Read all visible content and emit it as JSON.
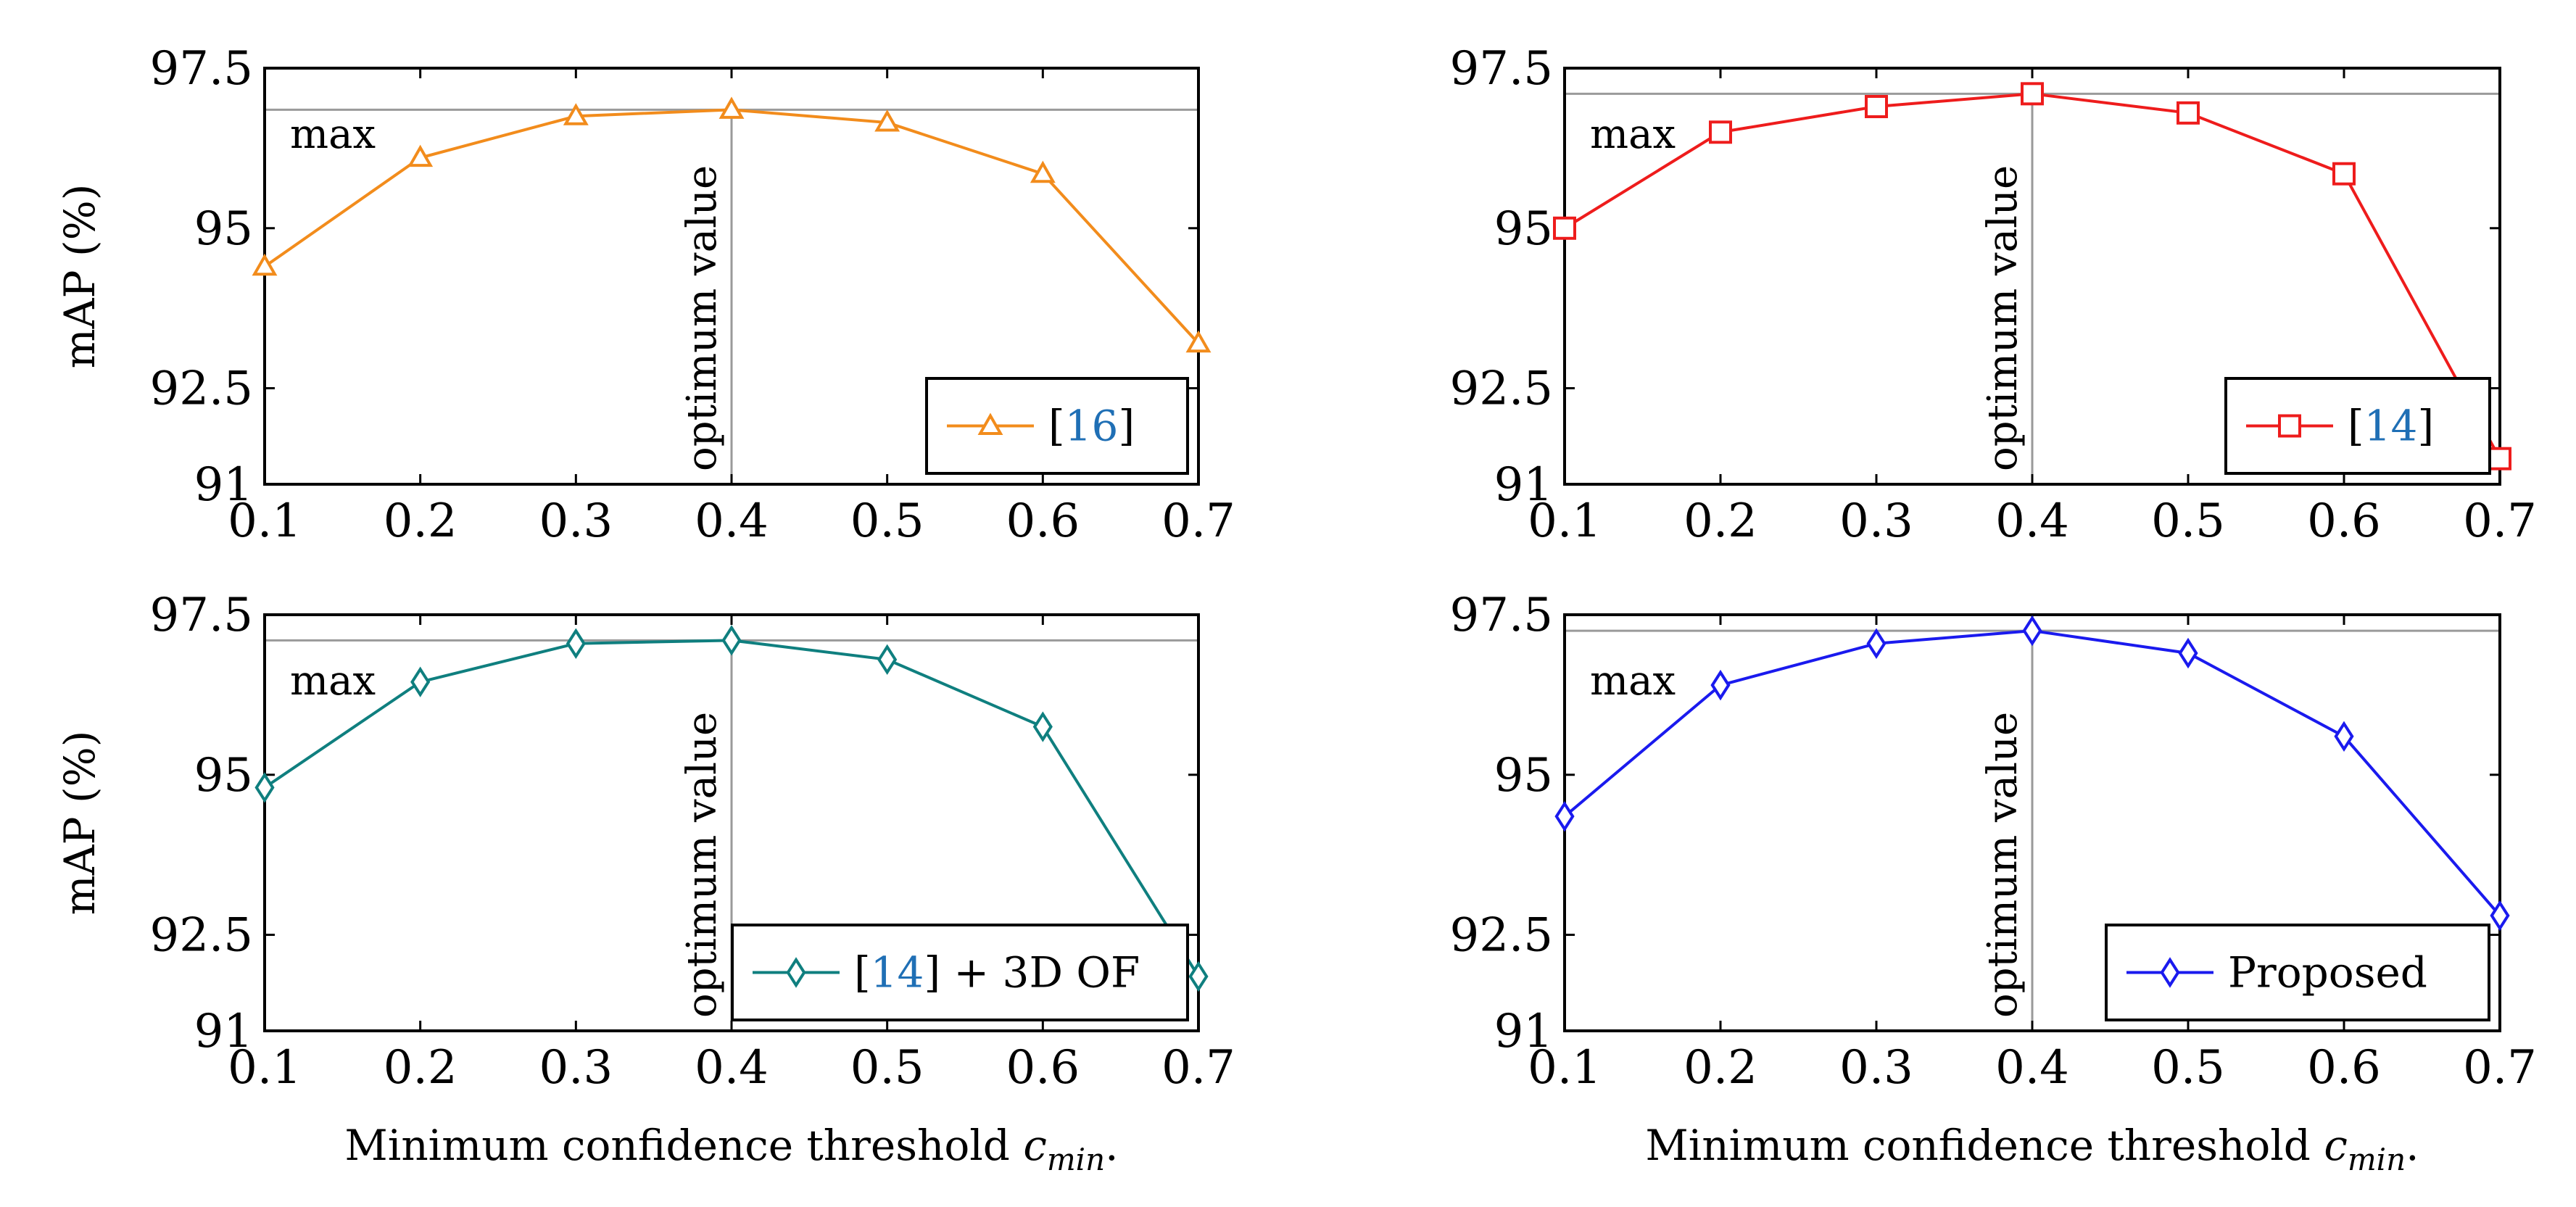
{
  "chart_data": [
    {
      "type": "line",
      "panel": "top-left",
      "title": "",
      "xlabel": "",
      "ylabel": "mAP (%)",
      "xlim": [
        0.1,
        0.7
      ],
      "ylim": [
        91,
        97.5
      ],
      "xticks": [
        "0.1",
        "0.2",
        "0.3",
        "0.4",
        "0.5",
        "0.6",
        "0.7"
      ],
      "yticks": [
        "91",
        "92.5",
        "95",
        "97.5"
      ],
      "series": [
        {
          "name": "[16]",
          "legend_prefix": "[",
          "legend_cite": "16",
          "legend_suffix": "]",
          "marker": "triangle",
          "color": "#f28c1c",
          "x": [
            0.1,
            0.2,
            0.3,
            0.4,
            0.5,
            0.6,
            0.7
          ],
          "y": [
            94.4,
            96.1,
            96.75,
            96.85,
            96.65,
            95.85,
            93.2
          ]
        }
      ],
      "max_line": 96.85,
      "max_label": "max",
      "optimum_x": 0.4,
      "optimum_label": "optimum value",
      "legend_position": "bottom-right"
    },
    {
      "type": "line",
      "panel": "top-right",
      "title": "",
      "xlabel": "",
      "ylabel": "",
      "xlim": [
        0.1,
        0.7
      ],
      "ylim": [
        91,
        97.5
      ],
      "xticks": [
        "0.1",
        "0.2",
        "0.3",
        "0.4",
        "0.5",
        "0.6",
        "0.7"
      ],
      "yticks": [
        "91",
        "92.5",
        "95",
        "97.5"
      ],
      "series": [
        {
          "name": "[14]",
          "legend_prefix": "[",
          "legend_cite": "14",
          "legend_suffix": "]",
          "marker": "square",
          "color": "#ee1c1c",
          "x": [
            0.1,
            0.2,
            0.3,
            0.4,
            0.5,
            0.6,
            0.7
          ],
          "y": [
            95.0,
            96.5,
            96.9,
            97.1,
            96.8,
            95.85,
            91.4
          ]
        }
      ],
      "max_line": 97.1,
      "max_label": "max",
      "optimum_x": 0.4,
      "optimum_label": "optimum value",
      "legend_position": "bottom-right"
    },
    {
      "type": "line",
      "panel": "bottom-left",
      "title": "",
      "xlabel": "Minimum confidence threshold c_min.",
      "xlabel_main": "Minimum confidence threshold ",
      "xlabel_var": "c",
      "xlabel_sub": "min",
      "xlabel_end": ".",
      "ylabel": "mAP (%)",
      "xlim": [
        0.1,
        0.7
      ],
      "ylim": [
        91,
        97.5
      ],
      "xticks": [
        "0.1",
        "0.2",
        "0.3",
        "0.4",
        "0.5",
        "0.6",
        "0.7"
      ],
      "yticks": [
        "91",
        "92.5",
        "95",
        "97.5"
      ],
      "series": [
        {
          "name": "[14] + 3D OF",
          "legend_prefix": "[",
          "legend_cite": "14",
          "legend_suffix": "] + 3D OF",
          "marker": "diamond",
          "color": "#0f7f7f",
          "x": [
            0.1,
            0.2,
            0.3,
            0.4,
            0.5,
            0.6,
            0.7
          ],
          "y": [
            94.8,
            96.45,
            97.05,
            97.1,
            96.8,
            95.75,
            91.85
          ]
        }
      ],
      "max_line": 97.1,
      "max_label": "max",
      "optimum_x": 0.4,
      "optimum_label": "optimum value",
      "legend_position": "bottom-right"
    },
    {
      "type": "line",
      "panel": "bottom-right",
      "title": "",
      "xlabel": "Minimum confidence threshold c_min.",
      "xlabel_main": "Minimum confidence threshold ",
      "xlabel_var": "c",
      "xlabel_sub": "min",
      "xlabel_end": ".",
      "ylabel": "",
      "xlim": [
        0.1,
        0.7
      ],
      "ylim": [
        91,
        97.5
      ],
      "xticks": [
        "0.1",
        "0.2",
        "0.3",
        "0.4",
        "0.5",
        "0.6",
        "0.7"
      ],
      "yticks": [
        "91",
        "92.5",
        "95",
        "97.5"
      ],
      "series": [
        {
          "name": "Proposed",
          "legend_prefix": "",
          "legend_cite": "",
          "legend_suffix": "Proposed",
          "marker": "diamond",
          "color": "#1a1aee",
          "x": [
            0.1,
            0.2,
            0.3,
            0.4,
            0.5,
            0.6,
            0.7
          ],
          "y": [
            94.35,
            96.4,
            97.05,
            97.25,
            96.9,
            95.6,
            92.8
          ]
        }
      ],
      "max_line": 97.25,
      "max_label": "max",
      "optimum_x": 0.4,
      "optimum_label": "optimum value",
      "legend_position": "bottom-right"
    }
  ]
}
